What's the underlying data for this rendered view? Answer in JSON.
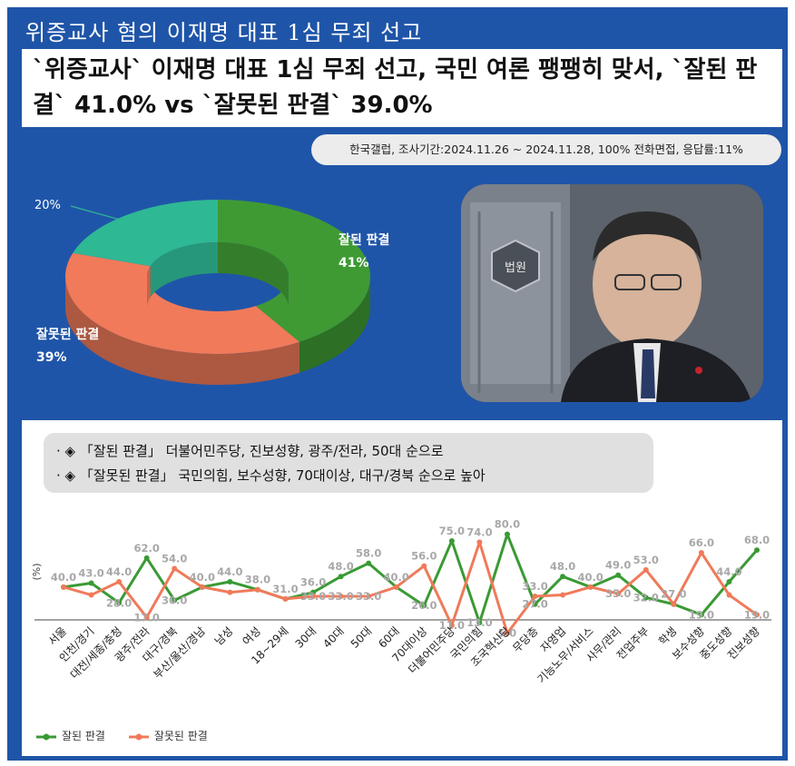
{
  "header": {
    "top_title": "위증교사 혐의 이재명 대표 1심 무죄 선고",
    "headline": "`위증교사` 이재명 대표 1심 무죄 선고, 국민 여론 팽팽히 맞서, `잘된 판결` 41.0% vs `잘못된 판결` 39.0%",
    "survey_info": "한국갤럽, 조사기간:2024.11.26 ~ 2024.11.28, 100% 전화면접, 응답률:11%"
  },
  "bullets": [
    "· ◈ 「잘된 판결」 더불어민주당, 진보성향, 광주/전라, 50대 순으로",
    "· ◈ 「잘못된 판결」 국민의힘, 보수성향, 70대이상, 대구/경북 순으로 높아"
  ],
  "photo": {
    "sign_text": "법원"
  },
  "chart_data": [
    {
      "type": "pie",
      "slices": [
        {
          "label": "잘된 판결",
          "value": 41,
          "display": "41%",
          "color": "#3f9a34"
        },
        {
          "label": "잘못된 판결",
          "value": 39,
          "display": "39%",
          "color": "#f07a5a"
        },
        {
          "label": "",
          "value": 20,
          "display": "20%",
          "color": "#2fb894"
        }
      ]
    },
    {
      "type": "line",
      "ylabel": "(%)",
      "categories": [
        "서울",
        "인천/경기",
        "대전/세종/충청",
        "광주/전라",
        "대구/경북",
        "부산/울산/경남",
        "남성",
        "여성",
        "18~29세",
        "30대",
        "40대",
        "50대",
        "60대",
        "70대이상",
        "더불어민주당",
        "국민의힘",
        "조국혁신당",
        "무당층",
        "자영업",
        "기능노무/서비스",
        "사무/관리",
        "전업주부",
        "학생",
        "보수성향",
        "중도성향",
        "진보성향"
      ],
      "series": [
        {
          "name": "잘된 판결",
          "color": "#3a9a34",
          "values": [
            40.0,
            43.0,
            28.0,
            62.0,
            30.0,
            40.0,
            44.0,
            38.0,
            31.0,
            36.0,
            48.0,
            58.0,
            40.0,
            26.0,
            75.0,
            13.0,
            80.0,
            27.0,
            48.0,
            40.0,
            49.0,
            32.0,
            27.0,
            19.0,
            44.0,
            68.0
          ]
        },
        {
          "name": "잘못된 판결",
          "color": "#f07a5a",
          "values": [
            40.0,
            34.0,
            44.0,
            17.0,
            54.0,
            40.0,
            36.0,
            38.0,
            31.0,
            33.0,
            33.0,
            33.0,
            40.0,
            56.0,
            11.0,
            74.0,
            5.0,
            33.0,
            34.0,
            40.0,
            35.0,
            53.0,
            27.0,
            66.0,
            34.0,
            19.0
          ]
        }
      ],
      "labels_top": [
        "40.0",
        "43.0",
        "44.0",
        "62.0",
        "54.0",
        "40.0",
        "44.0",
        "38.0",
        "31.0",
        "36.0",
        "48.0",
        "58.0",
        "40.0",
        "56.0",
        "75.0",
        "74.0",
        "80.0",
        "33.0",
        "48.0",
        "40.0",
        "49.0",
        "53.0",
        "27.0",
        "66.0",
        "44.0",
        "68.0"
      ],
      "labels_bottom": [
        "",
        "",
        "28.0",
        "17.0",
        "30.0",
        "",
        "",
        "",
        "",
        "33.0",
        "33.0",
        "33.0",
        "",
        "26.0",
        "11.0",
        "13.0",
        "5.0",
        "27.0",
        "",
        "",
        "35.0",
        "32.0",
        "",
        "19.0",
        "",
        "19.0"
      ]
    }
  ]
}
